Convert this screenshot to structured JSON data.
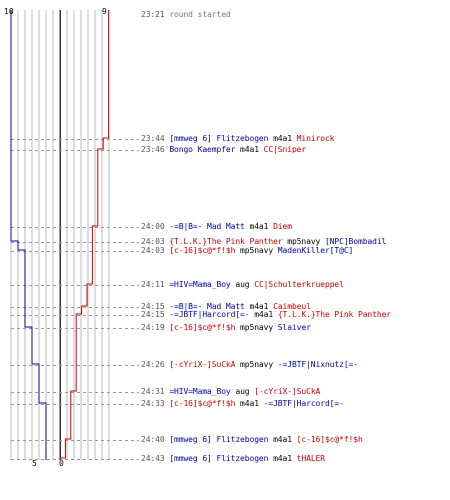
{
  "colors": {
    "blue": "#0000aa",
    "red": "#cc0000",
    "grid": "#bbbbbb",
    "center": "#333333",
    "dash": "#999999",
    "text": "#000000",
    "time": "#555555"
  },
  "scores": {
    "blue_start": "10",
    "red_start": "9",
    "blue_end": "5",
    "red_end": "0"
  },
  "events": [
    {
      "time": "23:21",
      "plain": "round started"
    },
    {
      "time": "23:44",
      "killer": "[mmweg 6] Flitzebogen",
      "killer_team": "blue",
      "weapon": "m4a1",
      "victim": "Minirock",
      "victim_team": "red"
    },
    {
      "time": "23:46",
      "killer": "Bongo Kaempfer",
      "killer_team": "blue",
      "weapon": "m4a1",
      "victim": "CC|Sniper",
      "victim_team": "red"
    },
    {
      "time": "24:00",
      "killer": "-=B|B=- Mad Matt",
      "killer_team": "blue",
      "weapon": "m4a1",
      "victim": "Diem",
      "victim_team": "red"
    },
    {
      "time": "24:03",
      "killer": "{T.L.K.}The Pink Panther",
      "killer_team": "red",
      "weapon": "mp5navy",
      "victim": "[NPC]Bombadil",
      "victim_team": "blue"
    },
    {
      "time": "24:03",
      "killer": "[c-16]$c@*f!$h",
      "killer_team": "red",
      "weapon": "mp5navy",
      "victim": "MadenKiller[T@C]",
      "victim_team": "blue"
    },
    {
      "time": "24:11",
      "killer": "=HIV=Mama_Boy",
      "killer_team": "blue",
      "weapon": "aug",
      "victim": "CC|Schulterkrueppel",
      "victim_team": "red"
    },
    {
      "time": "24:15",
      "killer": "-=B|B=- Mad Matt",
      "killer_team": "blue",
      "weapon": "m4a1",
      "victim": "Caimbeul",
      "victim_team": "red"
    },
    {
      "time": "24:15",
      "killer": "-=JBTF|Harcord[=-",
      "killer_team": "blue",
      "weapon": "m4a1",
      "victim": "{T.L.K.}The Pink Panther",
      "victim_team": "red"
    },
    {
      "time": "24:19",
      "killer": "[c-16]$c@*f!$h",
      "killer_team": "red",
      "weapon": "mp5navy",
      "victim": "Slaiver",
      "victim_team": "blue"
    },
    {
      "time": "24:26",
      "killer": "[-cYriX-]SuCkA",
      "killer_team": "red",
      "weapon": "mp5navy",
      "victim": "-=JBTF|Nixnutz[=-",
      "victim_team": "blue"
    },
    {
      "time": "24:31",
      "killer": "=HIV=Mama_Boy",
      "killer_team": "blue",
      "weapon": "aug",
      "victim": "[-cYriX-]SuCkA",
      "victim_team": "red"
    },
    {
      "time": "24:33",
      "killer": "[c-16]$c@*f!$h",
      "killer_team": "red",
      "weapon": "m4a1",
      "victim": "-=JBTF|Harcord[=-",
      "victim_team": "blue"
    },
    {
      "time": "24:40",
      "killer": "[mmweg 6] Flitzebogen",
      "killer_team": "blue",
      "weapon": "m4a1",
      "victim": "[c-16]$c@*f!$h",
      "victim_team": "red"
    },
    {
      "time": "24:43",
      "killer": "[mmweg 6] Flitzebogen",
      "killer_team": "blue",
      "weapon": "m4a1",
      "victim": "tHALER",
      "victim_team": "red"
    }
  ]
}
